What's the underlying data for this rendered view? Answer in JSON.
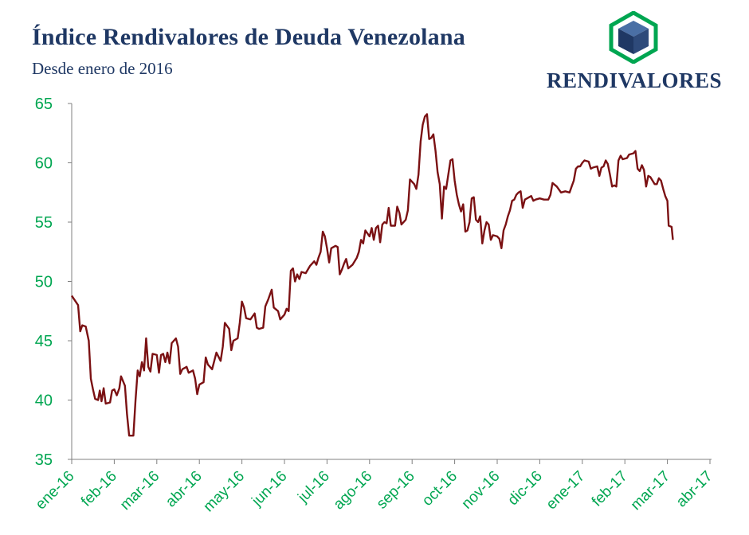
{
  "header": {
    "title": "Índice Rendivalores de Deuda Venezolana",
    "subtitle": "Desde enero de 2016"
  },
  "brand": {
    "logo_text": "RENDIVALORES",
    "logo_icon": "cube-hexagon-logo-icon",
    "colors": {
      "title": "#1f3864",
      "hex_border": "#00a651",
      "cube_top": "#4a6fa5",
      "cube_left": "#1f3864",
      "cube_right": "#2e4a7a"
    }
  },
  "colors": {
    "line": "#7b1113",
    "axis": "#808080",
    "tick_labels": "#00a651"
  },
  "chart_data": {
    "type": "line",
    "title": "Índice Rendivalores de Deuda Venezolana",
    "subtitle": "Desde enero de 2016",
    "xlabel": "",
    "ylabel": "",
    "ylim": [
      35,
      65
    ],
    "yticks": [
      "35",
      "40",
      "45",
      "50",
      "55",
      "60",
      "65"
    ],
    "xticks": [
      "ene-16",
      "feb-16",
      "mar-16",
      "abr-16",
      "may-16",
      "jun-16",
      "jul-16",
      "ago-16",
      "sep-16",
      "oct-16",
      "nov-16",
      "dic-16",
      "ene-17",
      "feb-17",
      "mar-17",
      "abr-17"
    ],
    "grid": false,
    "legend": "none",
    "series": [
      {
        "values": [
          [
            0.0,
            48.8
          ],
          [
            0.15,
            48.0
          ],
          [
            0.2,
            45.8
          ],
          [
            0.25,
            46.3
          ],
          [
            0.33,
            46.2
          ],
          [
            0.4,
            45.0
          ],
          [
            0.45,
            41.8
          ],
          [
            0.5,
            40.9
          ],
          [
            0.55,
            40.1
          ],
          [
            0.62,
            40.0
          ],
          [
            0.66,
            40.8
          ],
          [
            0.7,
            39.9
          ],
          [
            0.75,
            41.0
          ],
          [
            0.8,
            39.7
          ],
          [
            0.9,
            39.8
          ],
          [
            0.95,
            40.8
          ],
          [
            1.0,
            40.9
          ],
          [
            1.06,
            40.4
          ],
          [
            1.12,
            41.0
          ],
          [
            1.16,
            42.0
          ],
          [
            1.25,
            41.2
          ],
          [
            1.3,
            38.8
          ],
          [
            1.35,
            37.0
          ],
          [
            1.45,
            37.0
          ],
          [
            1.5,
            40.0
          ],
          [
            1.55,
            42.5
          ],
          [
            1.6,
            42.0
          ],
          [
            1.65,
            43.2
          ],
          [
            1.7,
            42.5
          ],
          [
            1.75,
            45.2
          ],
          [
            1.8,
            42.8
          ],
          [
            1.85,
            42.4
          ],
          [
            1.9,
            43.9
          ],
          [
            2.0,
            43.8
          ],
          [
            2.05,
            42.3
          ],
          [
            2.1,
            43.8
          ],
          [
            2.15,
            43.9
          ],
          [
            2.2,
            43.2
          ],
          [
            2.25,
            44.0
          ],
          [
            2.3,
            43.1
          ],
          [
            2.35,
            44.8
          ],
          [
            2.45,
            45.2
          ],
          [
            2.5,
            44.5
          ],
          [
            2.55,
            42.2
          ],
          [
            2.6,
            42.6
          ],
          [
            2.7,
            42.8
          ],
          [
            2.75,
            42.3
          ],
          [
            2.85,
            42.5
          ],
          [
            2.9,
            41.8
          ],
          [
            2.95,
            40.5
          ],
          [
            3.0,
            41.3
          ],
          [
            3.1,
            41.5
          ],
          [
            3.15,
            43.6
          ],
          [
            3.2,
            43.0
          ],
          [
            3.3,
            42.6
          ],
          [
            3.4,
            44.0
          ],
          [
            3.5,
            43.3
          ],
          [
            3.55,
            44.5
          ],
          [
            3.6,
            46.5
          ],
          [
            3.7,
            46.0
          ],
          [
            3.75,
            44.2
          ],
          [
            3.8,
            45.0
          ],
          [
            3.9,
            45.2
          ],
          [
            3.95,
            46.5
          ],
          [
            4.0,
            48.3
          ],
          [
            4.05,
            47.8
          ],
          [
            4.1,
            46.9
          ],
          [
            4.2,
            46.8
          ],
          [
            4.3,
            47.3
          ],
          [
            4.35,
            46.1
          ],
          [
            4.4,
            46.0
          ],
          [
            4.5,
            46.1
          ],
          [
            4.55,
            47.9
          ],
          [
            4.62,
            48.5
          ],
          [
            4.7,
            49.3
          ],
          [
            4.75,
            47.8
          ],
          [
            4.85,
            47.5
          ],
          [
            4.9,
            46.8
          ],
          [
            5.0,
            47.2
          ],
          [
            5.05,
            47.7
          ],
          [
            5.1,
            47.5
          ],
          [
            5.15,
            50.9
          ],
          [
            5.2,
            51.1
          ],
          [
            5.25,
            50.0
          ],
          [
            5.3,
            50.6
          ],
          [
            5.35,
            50.2
          ],
          [
            5.4,
            50.8
          ],
          [
            5.5,
            50.7
          ],
          [
            5.6,
            51.3
          ],
          [
            5.7,
            51.7
          ],
          [
            5.75,
            51.4
          ],
          [
            5.8,
            52.0
          ],
          [
            5.85,
            52.5
          ],
          [
            5.9,
            54.2
          ],
          [
            5.95,
            53.8
          ],
          [
            6.0,
            52.8
          ],
          [
            6.05,
            51.6
          ],
          [
            6.1,
            52.8
          ],
          [
            6.2,
            53.0
          ],
          [
            6.25,
            52.9
          ],
          [
            6.3,
            50.6
          ],
          [
            6.35,
            51.0
          ],
          [
            6.4,
            51.5
          ],
          [
            6.45,
            51.9
          ],
          [
            6.5,
            51.1
          ],
          [
            6.6,
            51.4
          ],
          [
            6.7,
            52.0
          ],
          [
            6.75,
            52.5
          ],
          [
            6.8,
            53.5
          ],
          [
            6.85,
            53.2
          ],
          [
            6.9,
            54.3
          ],
          [
            7.0,
            53.8
          ],
          [
            7.05,
            54.5
          ],
          [
            7.1,
            53.5
          ],
          [
            7.15,
            54.5
          ],
          [
            7.2,
            54.7
          ],
          [
            7.25,
            53.3
          ],
          [
            7.3,
            54.8
          ],
          [
            7.35,
            55.0
          ],
          [
            7.4,
            54.9
          ],
          [
            7.45,
            56.2
          ],
          [
            7.5,
            54.7
          ],
          [
            7.6,
            54.7
          ],
          [
            7.65,
            56.3
          ],
          [
            7.7,
            55.8
          ],
          [
            7.75,
            54.8
          ],
          [
            7.85,
            55.2
          ],
          [
            7.9,
            56.0
          ],
          [
            7.95,
            58.6
          ],
          [
            8.05,
            58.2
          ],
          [
            8.1,
            57.8
          ],
          [
            8.15,
            59.0
          ],
          [
            8.2,
            61.8
          ],
          [
            8.25,
            63.2
          ],
          [
            8.3,
            63.9
          ],
          [
            8.35,
            64.1
          ],
          [
            8.4,
            62.0
          ],
          [
            8.45,
            62.1
          ],
          [
            8.5,
            62.4
          ],
          [
            8.55,
            61.0
          ],
          [
            8.6,
            59.2
          ],
          [
            8.65,
            58.2
          ],
          [
            8.7,
            55.3
          ],
          [
            8.75,
            58.0
          ],
          [
            8.8,
            57.8
          ],
          [
            8.85,
            59.0
          ],
          [
            8.9,
            60.2
          ],
          [
            8.95,
            60.3
          ],
          [
            9.0,
            58.5
          ],
          [
            9.05,
            57.3
          ],
          [
            9.1,
            56.5
          ],
          [
            9.15,
            55.9
          ],
          [
            9.2,
            56.5
          ],
          [
            9.25,
            54.2
          ],
          [
            9.3,
            54.3
          ],
          [
            9.35,
            55.0
          ],
          [
            9.4,
            57.0
          ],
          [
            9.45,
            57.1
          ],
          [
            9.5,
            55.2
          ],
          [
            9.55,
            55.0
          ],
          [
            9.6,
            55.5
          ],
          [
            9.65,
            53.2
          ],
          [
            9.7,
            54.3
          ],
          [
            9.75,
            55.0
          ],
          [
            9.8,
            54.8
          ],
          [
            9.85,
            53.5
          ],
          [
            9.9,
            53.9
          ],
          [
            10.0,
            53.8
          ],
          [
            10.05,
            53.6
          ],
          [
            10.1,
            52.8
          ],
          [
            10.15,
            54.3
          ],
          [
            10.2,
            54.8
          ],
          [
            10.25,
            55.5
          ],
          [
            10.3,
            56.0
          ],
          [
            10.35,
            56.8
          ],
          [
            10.4,
            56.9
          ],
          [
            10.45,
            57.3
          ],
          [
            10.5,
            57.5
          ],
          [
            10.55,
            57.6
          ],
          [
            10.6,
            56.2
          ],
          [
            10.65,
            56.9
          ],
          [
            10.7,
            57.0
          ],
          [
            10.8,
            57.2
          ],
          [
            10.85,
            56.8
          ],
          [
            10.9,
            56.9
          ],
          [
            11.0,
            57.0
          ],
          [
            11.1,
            56.9
          ],
          [
            11.2,
            56.9
          ],
          [
            11.25,
            57.3
          ],
          [
            11.3,
            58.3
          ],
          [
            11.4,
            58.0
          ],
          [
            11.5,
            57.5
          ],
          [
            11.6,
            57.6
          ],
          [
            11.7,
            57.5
          ],
          [
            11.75,
            58.0
          ],
          [
            11.8,
            58.5
          ],
          [
            11.85,
            59.5
          ],
          [
            11.9,
            59.7
          ],
          [
            11.95,
            59.7
          ],
          [
            12.0,
            60.0
          ],
          [
            12.05,
            60.2
          ],
          [
            12.15,
            60.1
          ],
          [
            12.2,
            59.5
          ],
          [
            12.25,
            59.6
          ],
          [
            12.35,
            59.7
          ],
          [
            12.4,
            58.9
          ],
          [
            12.45,
            59.6
          ],
          [
            12.5,
            59.7
          ],
          [
            12.55,
            60.2
          ],
          [
            12.6,
            59.9
          ],
          [
            12.65,
            59.0
          ],
          [
            12.7,
            58.0
          ],
          [
            12.75,
            58.1
          ],
          [
            12.8,
            58.0
          ],
          [
            12.85,
            60.2
          ],
          [
            12.9,
            60.6
          ],
          [
            12.95,
            60.3
          ],
          [
            13.05,
            60.4
          ],
          [
            13.1,
            60.7
          ],
          [
            13.2,
            60.8
          ],
          [
            13.25,
            61.0
          ],
          [
            13.3,
            59.5
          ],
          [
            13.35,
            59.3
          ],
          [
            13.4,
            59.8
          ],
          [
            13.45,
            59.4
          ],
          [
            13.5,
            58.0
          ],
          [
            13.55,
            58.9
          ],
          [
            13.6,
            58.8
          ],
          [
            13.7,
            58.2
          ],
          [
            13.75,
            58.2
          ],
          [
            13.8,
            58.7
          ],
          [
            13.85,
            58.5
          ],
          [
            13.9,
            57.8
          ],
          [
            13.95,
            57.2
          ],
          [
            14.0,
            56.8
          ],
          [
            14.03,
            54.7
          ],
          [
            14.1,
            54.6
          ],
          [
            14.13,
            53.5
          ]
        ]
      }
    ]
  }
}
